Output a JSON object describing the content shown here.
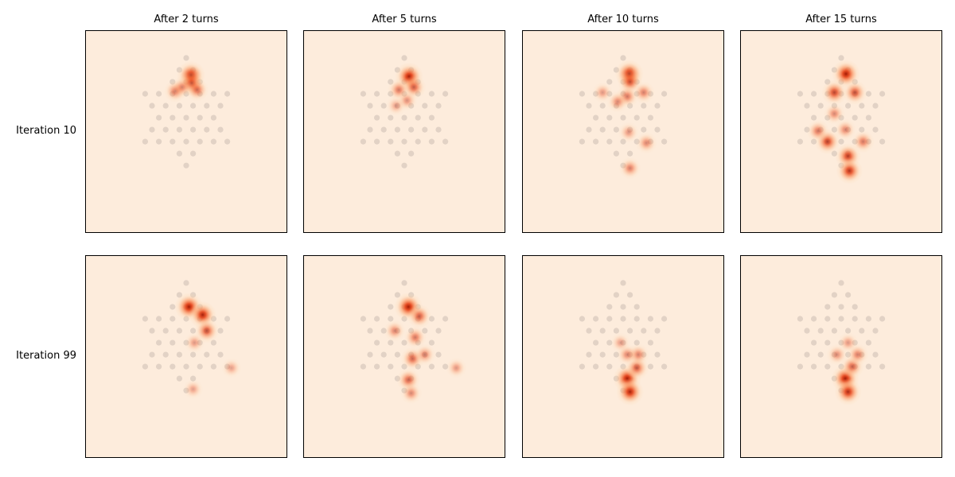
{
  "figure": {
    "column_titles": [
      "After 2 turns",
      "After 5 turns",
      "After 10 turns",
      "After 15 turns"
    ],
    "row_labels": [
      "Iteration 10",
      "Iteration 99"
    ]
  },
  "colors": {
    "background": "#fdecdc",
    "board_hole": "#d8c9bd",
    "heat_ramp": [
      "#fdd0a2",
      "#fb8c52",
      "#e6461c",
      "#a31a04"
    ],
    "frame": "#000000"
  },
  "chart_data": {
    "type": "heatmap",
    "description_of_axes": "No ticks or axis labels; each panel shows a Chinese-checkers-style star board with piece-position density.",
    "board_holes": [
      [
        0,
        -2.7
      ],
      [
        -0.5,
        -1.8
      ],
      [
        0.5,
        -1.8
      ],
      [
        -1,
        -0.9
      ],
      [
        0,
        -0.9
      ],
      [
        1,
        -0.9
      ],
      [
        -3,
        0
      ],
      [
        -2,
        0
      ],
      [
        -1,
        0
      ],
      [
        0,
        0
      ],
      [
        1,
        0
      ],
      [
        2,
        0
      ],
      [
        3,
        0
      ],
      [
        -2.5,
        0.9
      ],
      [
        -1.5,
        0.9
      ],
      [
        -0.5,
        0.9
      ],
      [
        0.5,
        0.9
      ],
      [
        1.5,
        0.9
      ],
      [
        2.5,
        0.9
      ],
      [
        -2,
        1.8
      ],
      [
        -1,
        1.8
      ],
      [
        0,
        1.8
      ],
      [
        1,
        1.8
      ],
      [
        2,
        1.8
      ],
      [
        -2.5,
        2.7
      ],
      [
        -1.5,
        2.7
      ],
      [
        -0.5,
        2.7
      ],
      [
        0.5,
        2.7
      ],
      [
        1.5,
        2.7
      ],
      [
        2.5,
        2.7
      ],
      [
        -3,
        3.6
      ],
      [
        -2,
        3.6
      ],
      [
        -1,
        3.6
      ],
      [
        0,
        3.6
      ],
      [
        1,
        3.6
      ],
      [
        2,
        3.6
      ],
      [
        3,
        3.6
      ],
      [
        -0.5,
        4.5
      ],
      [
        0.5,
        4.5
      ],
      [
        0,
        5.4
      ]
    ],
    "panels": [
      {
        "row": 0,
        "col": 0,
        "density": [
          [
            0.35,
            -1.4,
            1.0
          ],
          [
            0.4,
            -0.8,
            0.7
          ],
          [
            0.8,
            -0.3,
            0.45
          ],
          [
            -0.8,
            -0.2,
            0.4
          ],
          [
            -0.3,
            -0.5,
            0.3
          ]
        ]
      },
      {
        "row": 0,
        "col": 1,
        "density": [
          [
            0.35,
            -1.3,
            1.0
          ],
          [
            0.7,
            -0.5,
            0.55
          ],
          [
            -0.4,
            -0.3,
            0.4
          ],
          [
            0.2,
            0.5,
            0.25
          ],
          [
            -0.6,
            0.9,
            0.15
          ]
        ]
      },
      {
        "row": 0,
        "col": 2,
        "density": [
          [
            0.45,
            -1.5,
            1.0
          ],
          [
            0.5,
            -0.9,
            0.6
          ],
          [
            0.3,
            0.2,
            0.4
          ],
          [
            1.5,
            -0.1,
            0.35
          ],
          [
            -0.4,
            0.6,
            0.3
          ],
          [
            1.7,
            3.7,
            0.3
          ],
          [
            0.5,
            5.6,
            0.35
          ],
          [
            -1.5,
            -0.1,
            0.2
          ],
          [
            0.4,
            2.9,
            0.2
          ]
        ]
      },
      {
        "row": 0,
        "col": 3,
        "density": [
          [
            0.35,
            -1.5,
            1.0
          ],
          [
            -0.5,
            -0.1,
            0.7
          ],
          [
            1.0,
            -0.1,
            0.6
          ],
          [
            -1.0,
            3.6,
            0.7
          ],
          [
            0.5,
            4.7,
            0.75
          ],
          [
            0.6,
            5.8,
            0.8
          ],
          [
            -1.7,
            2.8,
            0.4
          ],
          [
            1.6,
            3.6,
            0.4
          ],
          [
            0.3,
            2.7,
            0.3
          ],
          [
            -0.5,
            1.5,
            0.3
          ]
        ]
      },
      {
        "row": 1,
        "col": 0,
        "density": [
          [
            0.2,
            -0.9,
            1.0
          ],
          [
            1.2,
            -0.3,
            0.9
          ],
          [
            1.5,
            0.9,
            0.6
          ],
          [
            0.6,
            1.8,
            0.2
          ],
          [
            3.3,
            3.7,
            0.15
          ],
          [
            0.5,
            5.3,
            0.15
          ]
        ]
      },
      {
        "row": 1,
        "col": 1,
        "density": [
          [
            0.3,
            -0.9,
            1.0
          ],
          [
            1.1,
            -0.2,
            0.55
          ],
          [
            0.8,
            1.4,
            0.4
          ],
          [
            0.6,
            3.0,
            0.5
          ],
          [
            0.3,
            4.6,
            0.5
          ],
          [
            0.5,
            5.6,
            0.3
          ],
          [
            -0.7,
            0.9,
            0.3
          ],
          [
            3.8,
            3.7,
            0.2
          ],
          [
            1.5,
            2.7,
            0.3
          ]
        ]
      },
      {
        "row": 1,
        "col": 2,
        "density": [
          [
            0.3,
            4.5,
            0.95
          ],
          [
            0.5,
            5.5,
            0.9
          ],
          [
            1.0,
            3.7,
            0.55
          ],
          [
            1.1,
            2.7,
            0.35
          ],
          [
            0.3,
            2.7,
            0.3
          ],
          [
            -0.2,
            1.8,
            0.15
          ]
        ]
      },
      {
        "row": 1,
        "col": 3,
        "density": [
          [
            0.3,
            4.5,
            0.95
          ],
          [
            0.5,
            5.5,
            0.85
          ],
          [
            0.8,
            3.6,
            0.5
          ],
          [
            1.2,
            2.7,
            0.35
          ],
          [
            -0.3,
            2.7,
            0.25
          ],
          [
            0.5,
            1.8,
            0.2
          ]
        ]
      }
    ]
  }
}
